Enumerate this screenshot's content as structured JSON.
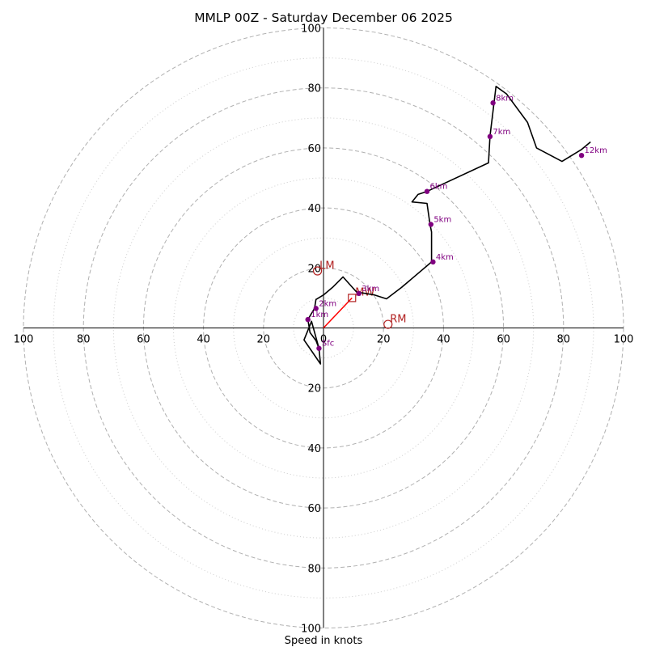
{
  "chart_data": {
    "type": "hodograph",
    "title": "MMLP 00Z - Saturday December 06 2025",
    "xlabel": "Speed in knots",
    "ylabel": "",
    "max_speed": 100,
    "ring_major": [
      20,
      40,
      60,
      80,
      100
    ],
    "ring_minor": [
      10,
      30,
      50,
      70,
      90
    ],
    "x_tick_labels": [
      "100",
      "80",
      "60",
      "40",
      "20",
      "0",
      "20",
      "40",
      "60",
      "80",
      "100"
    ],
    "y_tick_labels_top": [
      "20",
      "40",
      "60",
      "80",
      "100"
    ],
    "y_tick_labels_bottom": [
      "20",
      "40",
      "60",
      "80",
      "100"
    ],
    "trace": [
      [
        -1.5,
        -6.8
      ],
      [
        -4.0,
        2.2
      ],
      [
        -6.5,
        -4.0
      ],
      [
        -1.0,
        -12.0
      ],
      [
        -1.5,
        -6.8
      ],
      [
        -2.5,
        -4.2
      ],
      [
        -4.5,
        -1.5
      ],
      [
        -5.2,
        2.8
      ],
      [
        -3.0,
        6.5
      ],
      [
        -2.5,
        9.5
      ],
      [
        0.0,
        11.0
      ],
      [
        3.0,
        13.5
      ],
      [
        6.5,
        17.0
      ],
      [
        11.0,
        12.0
      ],
      [
        17.0,
        11.0
      ],
      [
        21.0,
        9.7
      ],
      [
        26.0,
        13.5
      ],
      [
        36.0,
        22.0
      ],
      [
        36.0,
        32.0
      ],
      [
        35.5,
        34.5
      ],
      [
        34.5,
        41.5
      ],
      [
        29.5,
        42.0
      ],
      [
        31.5,
        44.5
      ],
      [
        34.5,
        45.5
      ],
      [
        55.0,
        55.0
      ],
      [
        55.5,
        64.0
      ],
      [
        57.5,
        80.5
      ],
      [
        61.0,
        78.0
      ],
      [
        68.0,
        68.5
      ],
      [
        71.0,
        60.0
      ],
      [
        79.5,
        55.5
      ],
      [
        86.0,
        59.5
      ],
      [
        89.0,
        62.0
      ]
    ],
    "height_markers": [
      {
        "label": "Sfc",
        "u": -1.5,
        "v": -6.8
      },
      {
        "label": "1km",
        "u": -5.2,
        "v": 2.8
      },
      {
        "label": "2km",
        "u": -2.5,
        "v": 6.5
      },
      {
        "label": "3km",
        "u": 11.8,
        "v": 11.5
      },
      {
        "label": "4km",
        "u": 36.5,
        "v": 22.0
      },
      {
        "label": "5km",
        "u": 35.8,
        "v": 34.5
      },
      {
        "label": "6km",
        "u": 34.5,
        "v": 45.5
      },
      {
        "label": "7km",
        "u": 55.5,
        "v": 63.8
      },
      {
        "label": "8km",
        "u": 56.5,
        "v": 75.0
      },
      {
        "label": "12km",
        "u": 86.0,
        "v": 57.5
      }
    ],
    "storm_motion": [
      {
        "label": "LM",
        "u": -2.0,
        "v": 19.0
      },
      {
        "label": "RM",
        "u": 21.5,
        "v": 1.2
      }
    ],
    "mean_wind": {
      "label": "MW",
      "u": 9.5,
      "v": 10.0
    },
    "colors": {
      "trace": "#000000",
      "markers": "#800080",
      "storm": "#b22222",
      "mean_wind": "#ff0000",
      "ring_major": "#b0b0b0",
      "ring_minor": "#cccccc",
      "axes": "#000000"
    }
  }
}
